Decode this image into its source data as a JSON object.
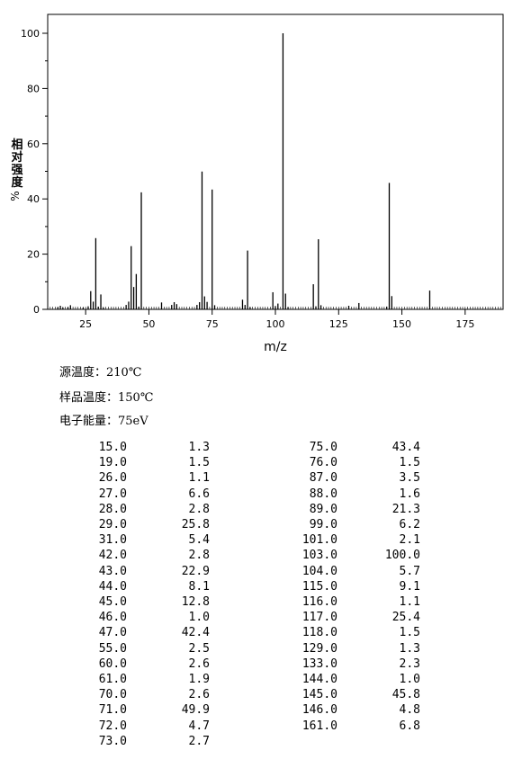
{
  "chart_data": {
    "type": "bar",
    "xlabel": "m/z",
    "ylabel": "相对强度",
    "ylabel_unit": "%",
    "xlim": [
      10,
      190
    ],
    "ylim": [
      0,
      105
    ],
    "xticks": [
      25,
      50,
      75,
      100,
      125,
      150,
      175
    ],
    "yticks": [
      0,
      20,
      40,
      60,
      80,
      100
    ],
    "grid": false,
    "color": "#000000",
    "x": [
      14.0,
      15.0,
      16.0,
      18.0,
      19.0,
      24.0,
      26.0,
      27.0,
      28.0,
      29.0,
      30.0,
      31.0,
      32.0,
      41.0,
      42.0,
      43.0,
      44.0,
      45.0,
      46.0,
      47.0,
      55.0,
      59.0,
      60.0,
      61.0,
      69.0,
      70.0,
      71.0,
      72.0,
      73.0,
      75.0,
      76.0,
      87.0,
      88.0,
      89.0,
      90.0,
      99.0,
      100.0,
      101.0,
      103.0,
      104.0,
      105.0,
      115.0,
      116.0,
      117.0,
      118.0,
      129.0,
      133.0,
      144.0,
      145.0,
      146.0,
      161.0
    ],
    "values": [
      0.8,
      1.3,
      0.6,
      0.8,
      1.5,
      0.6,
      1.1,
      6.6,
      2.8,
      25.8,
      1.0,
      5.4,
      0.6,
      1.6,
      2.8,
      22.9,
      8.1,
      12.8,
      1.0,
      42.4,
      2.5,
      1.6,
      2.6,
      1.9,
      1.6,
      2.6,
      49.9,
      4.7,
      2.7,
      43.4,
      1.5,
      3.5,
      1.6,
      21.3,
      0.8,
      6.2,
      1.2,
      2.1,
      100.0,
      5.7,
      0.8,
      9.1,
      1.1,
      25.4,
      1.5,
      1.3,
      2.3,
      1.0,
      45.8,
      4.8,
      6.8
    ]
  },
  "info": [
    "源温度：210℃",
    "样品温度：150℃",
    "电子能量：75eV"
  ],
  "table": {
    "left": [
      [
        "15.0",
        "1.3"
      ],
      [
        "19.0",
        "1.5"
      ],
      [
        "26.0",
        "1.1"
      ],
      [
        "27.0",
        "6.6"
      ],
      [
        "28.0",
        "2.8"
      ],
      [
        "29.0",
        "25.8"
      ],
      [
        "31.0",
        "5.4"
      ],
      [
        "42.0",
        "2.8"
      ],
      [
        "43.0",
        "22.9"
      ],
      [
        "44.0",
        "8.1"
      ],
      [
        "45.0",
        "12.8"
      ],
      [
        "46.0",
        "1.0"
      ],
      [
        "47.0",
        "42.4"
      ],
      [
        "55.0",
        "2.5"
      ],
      [
        "60.0",
        "2.6"
      ],
      [
        "61.0",
        "1.9"
      ],
      [
        "70.0",
        "2.6"
      ],
      [
        "71.0",
        "49.9"
      ],
      [
        "72.0",
        "4.7"
      ],
      [
        "73.0",
        "2.7"
      ]
    ],
    "right": [
      [
        "75.0",
        "43.4"
      ],
      [
        "76.0",
        "1.5"
      ],
      [
        "87.0",
        "3.5"
      ],
      [
        "88.0",
        "1.6"
      ],
      [
        "89.0",
        "21.3"
      ],
      [
        "99.0",
        "6.2"
      ],
      [
        "101.0",
        "2.1"
      ],
      [
        "103.0",
        "100.0"
      ],
      [
        "104.0",
        "5.7"
      ],
      [
        "115.0",
        "9.1"
      ],
      [
        "116.0",
        "1.1"
      ],
      [
        "117.0",
        "25.4"
      ],
      [
        "118.0",
        "1.5"
      ],
      [
        "129.0",
        "1.3"
      ],
      [
        "133.0",
        "2.3"
      ],
      [
        "144.0",
        "1.0"
      ],
      [
        "145.0",
        "45.8"
      ],
      [
        "146.0",
        "4.8"
      ],
      [
        "161.0",
        "6.8"
      ]
    ]
  }
}
